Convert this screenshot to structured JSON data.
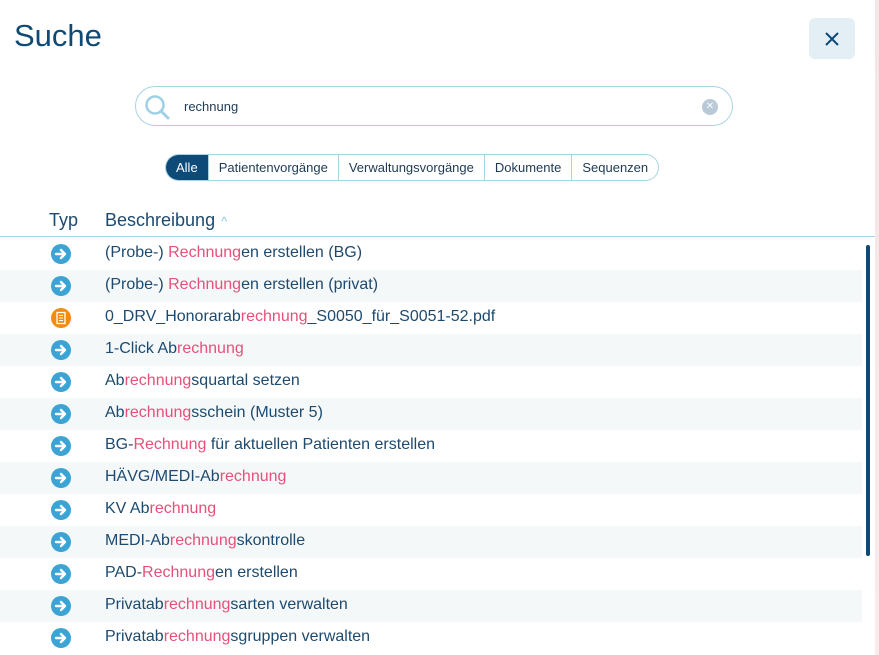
{
  "header": {
    "title": "Suche",
    "close_icon": "close-icon"
  },
  "search": {
    "value": "rechnung",
    "placeholder": "",
    "icon": "search-icon",
    "clear_icon": "clear-icon"
  },
  "tabs": [
    {
      "label": "Alle",
      "active": true
    },
    {
      "label": "Patientenvorgänge"
    },
    {
      "label": "Verwaltungsvorgänge"
    },
    {
      "label": "Dokumente"
    },
    {
      "label": "Sequenzen"
    }
  ],
  "table": {
    "columns": {
      "type": "Typ",
      "description": "Beschreibung",
      "sort": "ascending"
    },
    "rows": [
      {
        "type": "action",
        "pre": "(Probe-) ",
        "match": "Rechnung",
        "post": "en erstellen (BG)"
      },
      {
        "type": "action",
        "pre": "(Probe-) ",
        "match": "Rechnung",
        "post": "en erstellen (privat)"
      },
      {
        "type": "document",
        "pre": "0_DRV_Honorarab",
        "match": "rechnung",
        "post": "_S0050_für_S0051-52.pdf"
      },
      {
        "type": "action",
        "pre": "1-Click Ab",
        "match": "rechnung",
        "post": ""
      },
      {
        "type": "action",
        "pre": "Ab",
        "match": "rechnung",
        "post": "squartal setzen"
      },
      {
        "type": "action",
        "pre": "Ab",
        "match": "rechnung",
        "post": "sschein (Muster 5)"
      },
      {
        "type": "action",
        "pre": "BG-",
        "match": "Rechnung",
        "post": " für aktuellen Patienten erstellen"
      },
      {
        "type": "action",
        "pre": "HÄVG/MEDI-Ab",
        "match": "rechnung",
        "post": ""
      },
      {
        "type": "action",
        "pre": "KV Ab",
        "match": "rechnung",
        "post": ""
      },
      {
        "type": "action",
        "pre": "MEDI-Ab",
        "match": "rechnung",
        "post": "skontrolle"
      },
      {
        "type": "action",
        "pre": "PAD-",
        "match": "Rechnung",
        "post": "en erstellen"
      },
      {
        "type": "action",
        "pre": "Privatab",
        "match": "rechnung",
        "post": "sarten verwalten"
      },
      {
        "type": "action",
        "pre": "Privatab",
        "match": "rechnung",
        "post": "sgruppen verwalten"
      }
    ]
  },
  "colors": {
    "primary": "#0d4a78",
    "highlight": "#e6507a",
    "action_icon": "#3ca4d4",
    "document_icon": "#f28c0f",
    "row_alt": "#f4f8f9"
  }
}
